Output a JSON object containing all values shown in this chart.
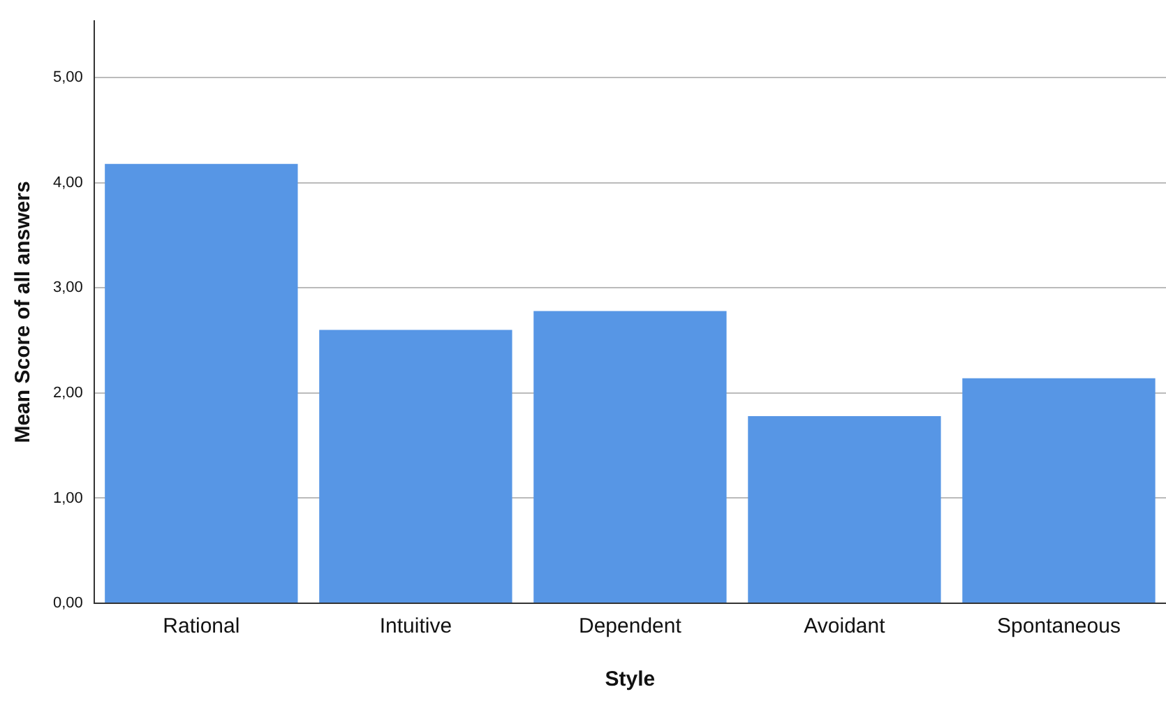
{
  "chart_data": {
    "type": "bar",
    "xlabel": "Style",
    "ylabel": "Mean Score of all answers",
    "categories": [
      "Rational",
      "Intuitive",
      "Dependent",
      "Avoidant",
      "Spontaneous"
    ],
    "values": [
      4.18,
      2.6,
      2.78,
      1.78,
      2.14
    ],
    "color": "#5796e5",
    "ylim": [
      0,
      5.54
    ],
    "yticks": [
      {
        "value": 0,
        "label": "0,00"
      },
      {
        "value": 1,
        "label": "1,00"
      },
      {
        "value": 2,
        "label": "2,00"
      },
      {
        "value": 3,
        "label": "3,00"
      },
      {
        "value": 4,
        "label": "4,00"
      },
      {
        "value": 5,
        "label": "5,00"
      }
    ],
    "grid": "y",
    "legend": false
  }
}
